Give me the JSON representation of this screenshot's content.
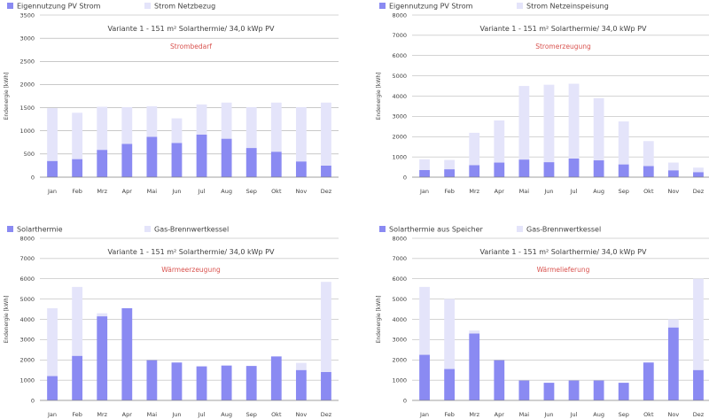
{
  "colors": {
    "primary": "#8a8af2",
    "secondary": "#e4e4fa"
  },
  "chart_data": [
    {
      "type": "bar",
      "stacked": true,
      "legend": [
        "Eigennutzung PV Strom",
        "Strom Netzbezug"
      ],
      "subtitle": "Variante 1 - 151 m²  Solarthermie/ 34,0 kWp PV",
      "annotation": "Strombedarf",
      "ylabel": "Endenergie [kWh]",
      "ylim": [
        0,
        3500
      ],
      "yticks": [
        0,
        500,
        1000,
        1500,
        2000,
        2500,
        3000,
        3500
      ],
      "categories": [
        "Jan",
        "Feb",
        "Mrz",
        "Apr",
        "Mai",
        "Jun",
        "Jul",
        "Aug",
        "Sep",
        "Okt",
        "Nov",
        "Dez"
      ],
      "series": [
        {
          "name": "Eigennutzung PV Strom",
          "values": [
            350,
            390,
            590,
            720,
            870,
            740,
            920,
            830,
            630,
            550,
            340,
            250
          ]
        },
        {
          "name": "Strom Netzbezug",
          "values": [
            1140,
            1000,
            930,
            790,
            660,
            530,
            650,
            780,
            880,
            1060,
            1170,
            1360
          ]
        }
      ]
    },
    {
      "type": "bar",
      "stacked": true,
      "legend": [
        "Eigennutzung PV Strom",
        "Strom Netzeinspeisung"
      ],
      "subtitle": "Variante 1 - 151 m²  Solarthermie/ 34,0 kWp PV",
      "annotation": "Stromerzeugung",
      "ylabel": "Endenergie [kWh]",
      "ylim": [
        0,
        8000
      ],
      "yticks": [
        0,
        1000,
        2000,
        3000,
        4000,
        5000,
        6000,
        7000,
        8000
      ],
      "categories": [
        "Jan",
        "Feb",
        "Mrz",
        "Apr",
        "Mai",
        "Jun",
        "Jul",
        "Aug",
        "Sep",
        "Okt",
        "Nov",
        "Dez"
      ],
      "series": [
        {
          "name": "Eigennutzung PV Strom",
          "values": [
            350,
            390,
            590,
            720,
            870,
            740,
            920,
            830,
            630,
            550,
            340,
            250
          ]
        },
        {
          "name": "Strom Netzeinspeisung",
          "values": [
            530,
            460,
            1600,
            2080,
            3630,
            3820,
            3690,
            3070,
            2120,
            1230,
            380,
            220
          ]
        }
      ]
    },
    {
      "type": "bar",
      "stacked": true,
      "legend": [
        "Solarthermie",
        "Gas-Brennwertkessel"
      ],
      "subtitle": "Variante 1 - 151 m²  Solarthermie/ 34,0 kWp PV",
      "annotation": "Wärmeerzeugung",
      "ylabel": "Endenergie [kWh]",
      "ylim": [
        0,
        8000
      ],
      "yticks": [
        0,
        1000,
        2000,
        3000,
        4000,
        5000,
        6000,
        7000,
        8000
      ],
      "categories": [
        "Jan",
        "Feb",
        "Mrz",
        "Apr",
        "Mai",
        "Jun",
        "Jul",
        "Aug",
        "Sep",
        "Okt",
        "Nov",
        "Dez"
      ],
      "series": [
        {
          "name": "Solarthermie",
          "values": [
            1200,
            2200,
            4150,
            4550,
            1980,
            1870,
            1680,
            1720,
            1700,
            2170,
            1500,
            1400
          ]
        },
        {
          "name": "Gas-Brennwertkessel",
          "values": [
            3350,
            3400,
            150,
            0,
            0,
            0,
            0,
            0,
            0,
            0,
            350,
            4450
          ]
        }
      ]
    },
    {
      "type": "bar",
      "stacked": true,
      "legend": [
        "Solarthermie aus Speicher",
        "Gas-Brennwertkessel"
      ],
      "subtitle": "Variante 1 - 151 m²  Solarthermie/ 34,0 kWp PV",
      "annotation": "Wärmelieferung",
      "ylabel": "Endenergie [kWh]",
      "ylim": [
        0,
        8000
      ],
      "yticks": [
        0,
        1000,
        2000,
        3000,
        4000,
        5000,
        6000,
        7000,
        8000
      ],
      "categories": [
        "Jan",
        "Feb",
        "Mrz",
        "Apr",
        "Mai",
        "Jun",
        "Jul",
        "Aug",
        "Sep",
        "Okt",
        "Nov",
        "Dez"
      ],
      "series": [
        {
          "name": "Solarthermie aus Speicher",
          "values": [
            2250,
            1550,
            3300,
            1980,
            980,
            870,
            980,
            980,
            870,
            1870,
            3600,
            1500
          ]
        },
        {
          "name": "Gas-Brennwertkessel",
          "values": [
            3350,
            3450,
            150,
            0,
            0,
            0,
            0,
            0,
            0,
            0,
            400,
            4500
          ]
        }
      ]
    }
  ]
}
